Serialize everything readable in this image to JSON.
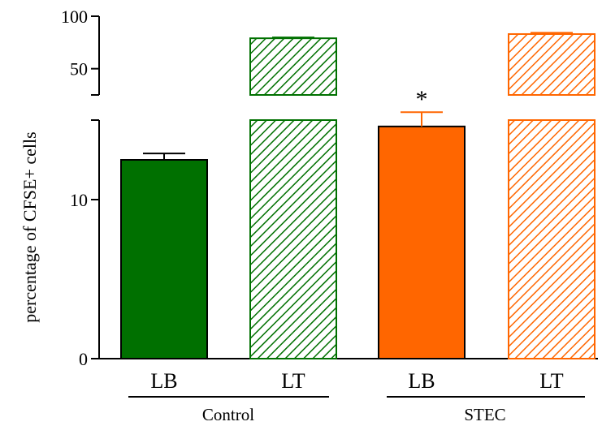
{
  "chart_data": {
    "type": "bar",
    "title": "",
    "xlabel": "",
    "ylabel": "percentage of CFSE+ cells",
    "axis_break": {
      "lower_segment": [
        0,
        15
      ],
      "upper_segment": [
        25,
        100
      ],
      "upper_ticks": [
        "100",
        "50"
      ],
      "lower_ticks": [
        "10",
        "0"
      ]
    },
    "groups": [
      "Control",
      "STEC"
    ],
    "categories": [
      "LB",
      "LT",
      "LB",
      "LT"
    ],
    "bars": [
      {
        "group": "Control",
        "category": "LB",
        "value": 12.5,
        "error": 0.4,
        "color": "#007000",
        "fill": "solid",
        "significance": ""
      },
      {
        "group": "Control",
        "category": "LT",
        "value": 79,
        "error": 0.8,
        "color": "#007000",
        "fill": "hatched",
        "significance": ""
      },
      {
        "group": "STEC",
        "category": "LB",
        "value": 14.6,
        "error": 0.9,
        "color": "#ff6600",
        "fill": "solid",
        "significance": "*"
      },
      {
        "group": "STEC",
        "category": "LT",
        "value": 83,
        "error": 1.2,
        "color": "#ff6600",
        "fill": "hatched",
        "significance": ""
      }
    ]
  }
}
